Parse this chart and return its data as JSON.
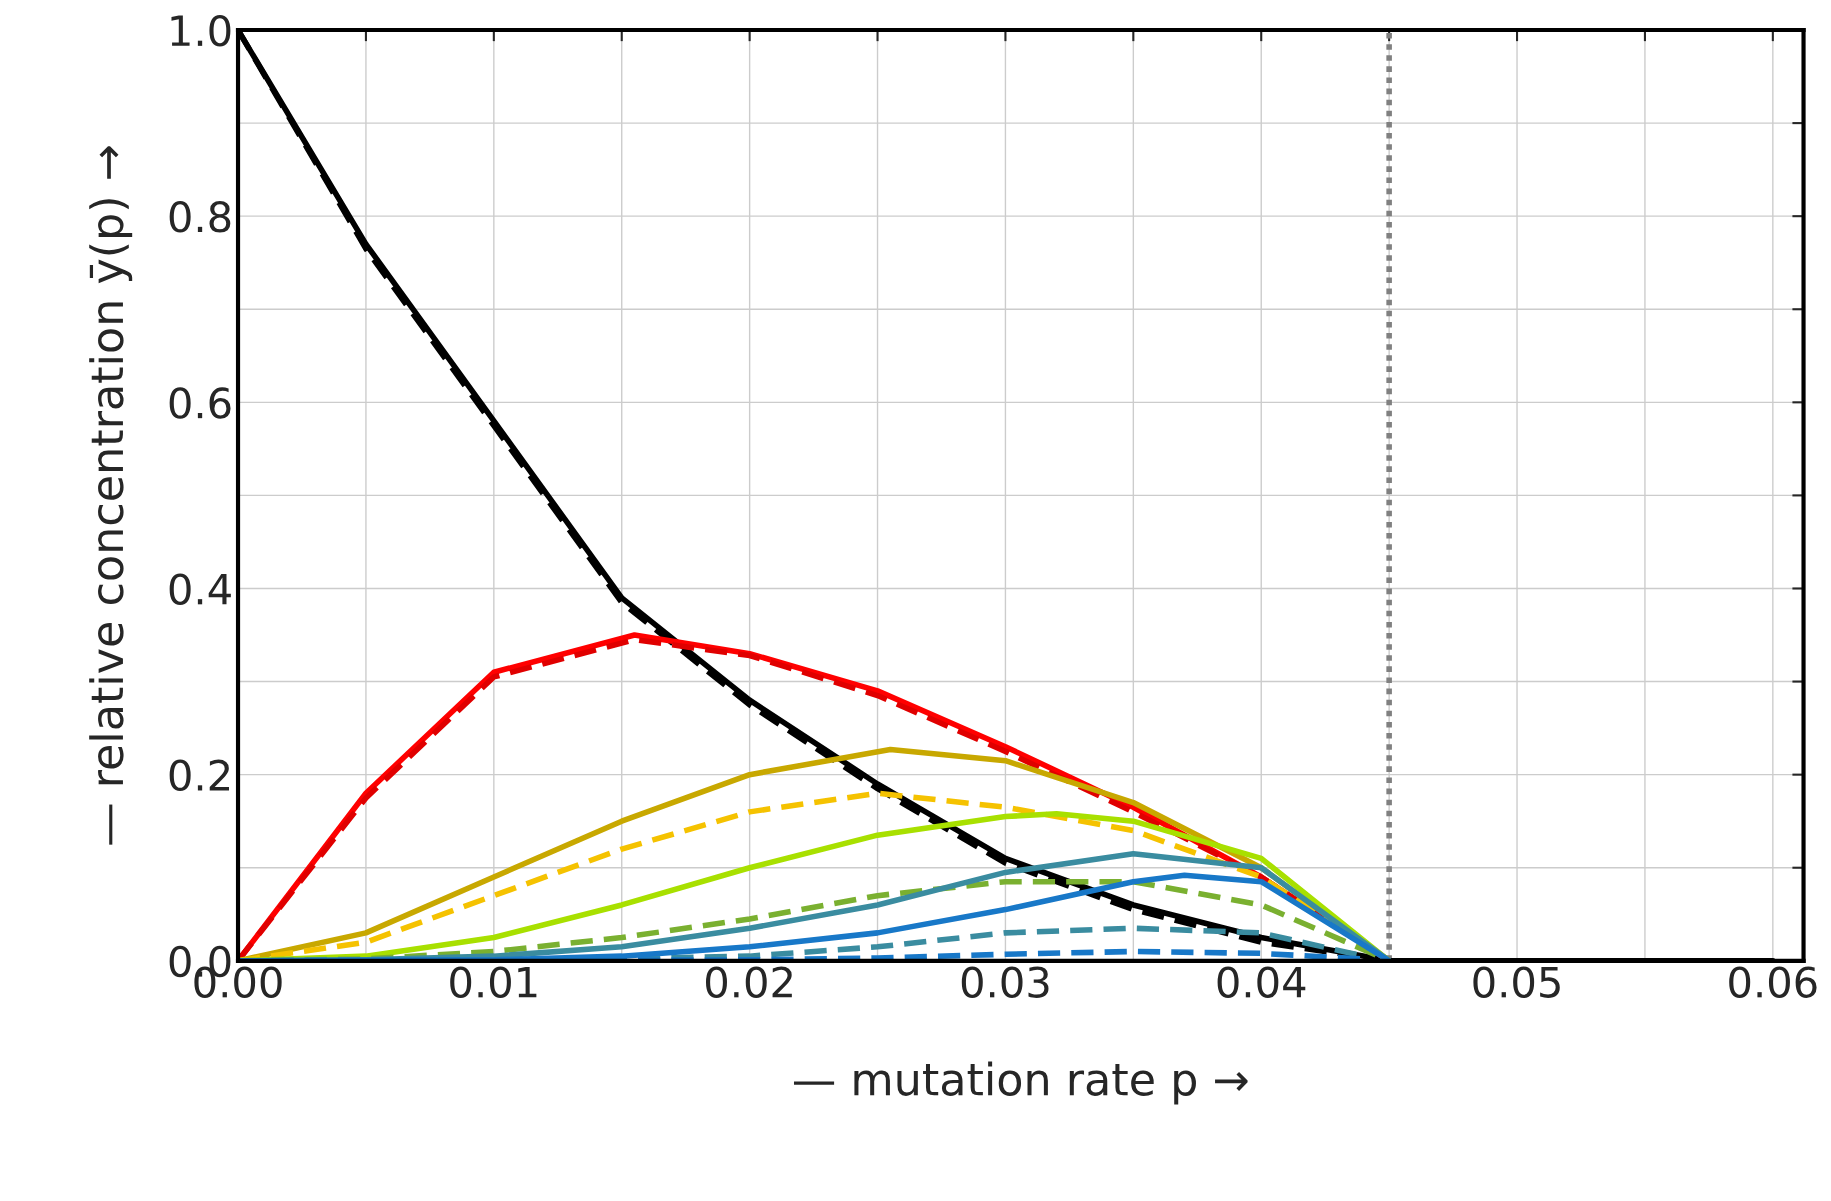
{
  "chart_data": {
    "type": "line",
    "xlabel": "— mutation rate p →",
    "ylabel": "— relative concentration ȳ(p) →",
    "xlim": [
      0,
      0.0612
    ],
    "ylim": [
      0,
      1.0
    ],
    "xticks": [
      {
        "value": 0,
        "label": "0.00"
      },
      {
        "value": 0.005,
        "label": null
      },
      {
        "value": 0.01,
        "label": "0.01"
      },
      {
        "value": 0.015,
        "label": null
      },
      {
        "value": 0.02,
        "label": "0.02"
      },
      {
        "value": 0.025,
        "label": null
      },
      {
        "value": 0.03,
        "label": "0.03"
      },
      {
        "value": 0.035,
        "label": null
      },
      {
        "value": 0.04,
        "label": "0.04"
      },
      {
        "value": 0.045,
        "label": null
      },
      {
        "value": 0.05,
        "label": "0.05"
      },
      {
        "value": 0.055,
        "label": null
      },
      {
        "value": 0.06,
        "label": "0.06"
      }
    ],
    "yticks": [
      {
        "value": 0,
        "label": "0.0"
      },
      {
        "value": 0.1,
        "label": null
      },
      {
        "value": 0.2,
        "label": "0.2"
      },
      {
        "value": 0.3,
        "label": null
      },
      {
        "value": 0.4,
        "label": "0.4"
      },
      {
        "value": 0.5,
        "label": null
      },
      {
        "value": 0.6,
        "label": "0.6"
      },
      {
        "value": 0.7,
        "label": null
      },
      {
        "value": 0.8,
        "label": "0.8"
      },
      {
        "value": 0.9,
        "label": null
      },
      {
        "value": 1.0,
        "label": "1.0"
      }
    ],
    "grid": true,
    "ref_lines": [
      {
        "axis": "x",
        "value": 0.045,
        "color": "#808080",
        "line_style": "dotted"
      }
    ],
    "series": [
      {
        "color": "#000000",
        "line_style": "solid",
        "x": [
          0,
          0.005,
          0.01,
          0.015,
          0.02,
          0.025,
          0.03,
          0.035,
          0.04,
          0.045,
          0.06
        ],
        "values": [
          1.0,
          0.77,
          0.58,
          0.39,
          0.28,
          0.19,
          0.11,
          0.06,
          0.025,
          0,
          0
        ]
      },
      {
        "color": "#000000",
        "line_style": "dashed",
        "x": [
          0,
          0.005,
          0.01,
          0.015,
          0.02,
          0.025,
          0.03,
          0.035,
          0.04,
          0.045,
          0.06
        ],
        "values": [
          1.0,
          0.765,
          0.575,
          0.385,
          0.275,
          0.185,
          0.105,
          0.055,
          0.02,
          0,
          0
        ]
      },
      {
        "color": "#ff0000",
        "line_style": "solid",
        "x": [
          0,
          0.005,
          0.01,
          0.0155,
          0.02,
          0.025,
          0.03,
          0.035,
          0.04,
          0.045
        ],
        "values": [
          0,
          0.18,
          0.31,
          0.35,
          0.33,
          0.29,
          0.23,
          0.165,
          0.09,
          0
        ]
      },
      {
        "color": "#e00000",
        "line_style": "dashed",
        "x": [
          0,
          0.005,
          0.01,
          0.0155,
          0.02,
          0.025,
          0.03,
          0.035,
          0.04,
          0.045
        ],
        "values": [
          0,
          0.175,
          0.305,
          0.345,
          0.328,
          0.285,
          0.225,
          0.16,
          0.09,
          0
        ]
      },
      {
        "color": "#c8a800",
        "line_style": "solid",
        "x": [
          0,
          0.005,
          0.01,
          0.015,
          0.02,
          0.0255,
          0.03,
          0.035,
          0.04,
          0.045
        ],
        "values": [
          0,
          0.03,
          0.09,
          0.15,
          0.2,
          0.227,
          0.215,
          0.17,
          0.1,
          0
        ]
      },
      {
        "color": "#f5c200",
        "line_style": "dashed",
        "x": [
          0,
          0.005,
          0.01,
          0.015,
          0.02,
          0.025,
          0.03,
          0.035,
          0.04,
          0.045
        ],
        "values": [
          0,
          0.02,
          0.07,
          0.12,
          0.16,
          0.18,
          0.165,
          0.14,
          0.09,
          0
        ]
      },
      {
        "color": "#a8e000",
        "line_style": "solid",
        "x": [
          0,
          0.005,
          0.01,
          0.015,
          0.02,
          0.025,
          0.03,
          0.032,
          0.035,
          0.04,
          0.045
        ],
        "values": [
          0,
          0.005,
          0.025,
          0.06,
          0.1,
          0.135,
          0.155,
          0.158,
          0.15,
          0.11,
          0
        ]
      },
      {
        "color": "#7ab030",
        "line_style": "dashed",
        "x": [
          0,
          0.005,
          0.01,
          0.015,
          0.02,
          0.025,
          0.03,
          0.035,
          0.04,
          0.045
        ],
        "values": [
          0,
          0.002,
          0.01,
          0.025,
          0.045,
          0.07,
          0.085,
          0.085,
          0.06,
          0
        ]
      },
      {
        "color": "#3a8ca0",
        "line_style": "solid",
        "x": [
          0,
          0.005,
          0.01,
          0.015,
          0.02,
          0.025,
          0.03,
          0.035,
          0.04,
          0.045
        ],
        "values": [
          0,
          0.001,
          0.005,
          0.015,
          0.035,
          0.06,
          0.095,
          0.115,
          0.1,
          0
        ]
      },
      {
        "color": "#3a8ca0",
        "line_style": "dashed",
        "x": [
          0,
          0.01,
          0.015,
          0.02,
          0.025,
          0.03,
          0.035,
          0.04,
          0.044
        ],
        "values": [
          0,
          0.001,
          0.002,
          0.005,
          0.015,
          0.03,
          0.035,
          0.03,
          0.005
        ]
      },
      {
        "color": "#1878c8",
        "line_style": "solid",
        "x": [
          0,
          0.01,
          0.015,
          0.02,
          0.025,
          0.03,
          0.035,
          0.037,
          0.04,
          0.045
        ],
        "values": [
          0,
          0.001,
          0.005,
          0.015,
          0.03,
          0.055,
          0.085,
          0.092,
          0.085,
          0
        ]
      },
      {
        "color": "#1878c8",
        "line_style": "dashed",
        "x": [
          0,
          0.02,
          0.025,
          0.03,
          0.035,
          0.04,
          0.044
        ],
        "values": [
          0,
          0.001,
          0.003,
          0.007,
          0.01,
          0.008,
          0.002
        ]
      }
    ]
  }
}
